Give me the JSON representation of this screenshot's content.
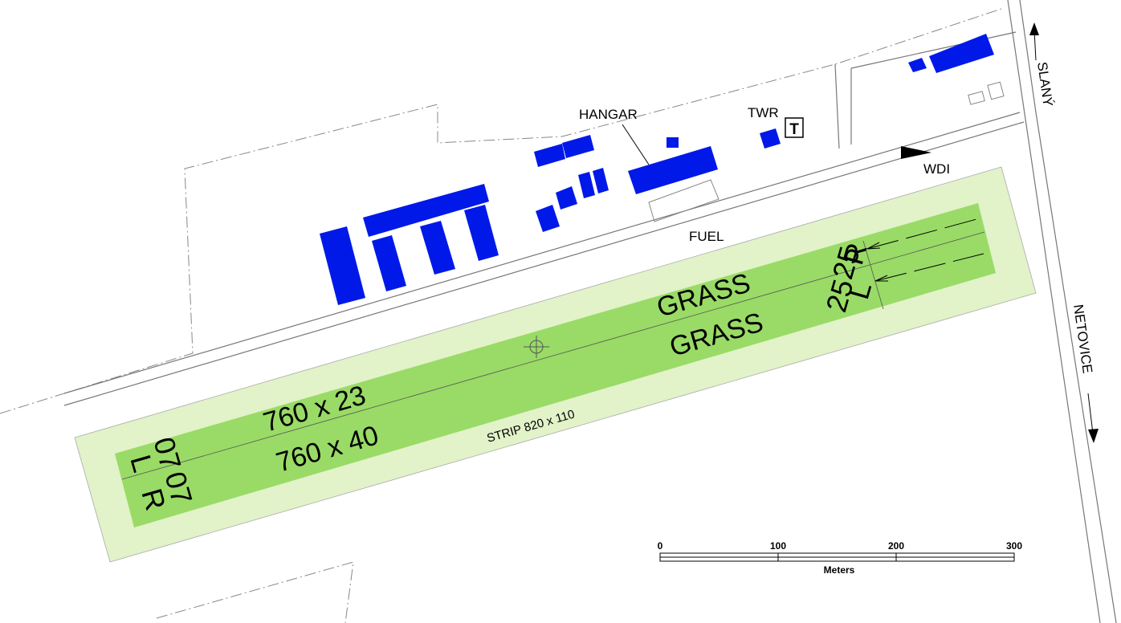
{
  "colors": {
    "strip": "#e2f2c9",
    "runway": "#99db66",
    "building": "#0019e8",
    "line": "#777777"
  },
  "labels": {
    "hangar": "HANGAR",
    "twr": "TWR",
    "twr_symbol": "T",
    "wdi": "WDI",
    "fuel": "FUEL",
    "slany": "SLANÝ",
    "netovice": "NETOVICE",
    "strip": "STRIP  820 x 110",
    "grass_north": "GRASS",
    "grass_south": "GRASS",
    "dims_north": "760 x 23",
    "dims_south": "760 x 40"
  },
  "runways": {
    "rwy_07_north": "07",
    "rwy_07_north_side": "L",
    "rwy_07_south": "07",
    "rwy_07_south_side": "R",
    "rwy_25_north": "25",
    "rwy_25_north_side": "R",
    "rwy_25_south": "25",
    "rwy_25_south_side": "L"
  },
  "scale": {
    "ticks": [
      "0",
      "100",
      "200",
      "300"
    ],
    "unit": "Meters"
  }
}
